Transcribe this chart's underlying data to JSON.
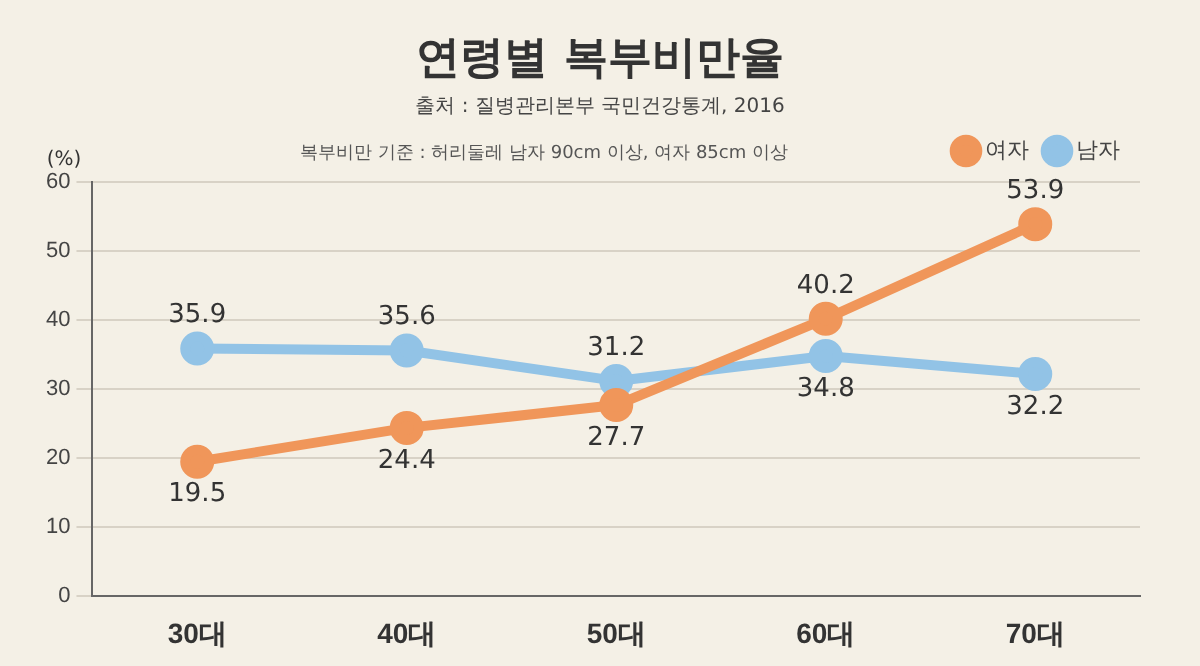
{
  "chart_data": {
    "type": "line",
    "title": "연령별 복부비만율",
    "subtitle": "출처 : 질병관리본부 국민건강통계, 2016",
    "annotations": [
      "복부비만 기준 : 허리둘레 남자 90cm 이상, 여자 85cm 이상"
    ],
    "ylabel": "(%)",
    "categories": [
      "30대",
      "40대",
      "50대",
      "60대",
      "70대"
    ],
    "series": [
      {
        "name": "여자",
        "color": "#f0965a",
        "values": [
          19.5,
          24.4,
          27.7,
          40.2,
          53.9
        ]
      },
      {
        "name": "남자",
        "color": "#92c3e6",
        "values": [
          35.9,
          35.6,
          31.2,
          34.8,
          32.2
        ]
      }
    ],
    "ylim": [
      0,
      60
    ],
    "yticks": [
      0,
      10,
      20,
      30,
      40,
      50,
      60
    ],
    "grid": "y",
    "legend": "top right",
    "marker": "circle",
    "line_style": "solid",
    "data_labels": true
  }
}
